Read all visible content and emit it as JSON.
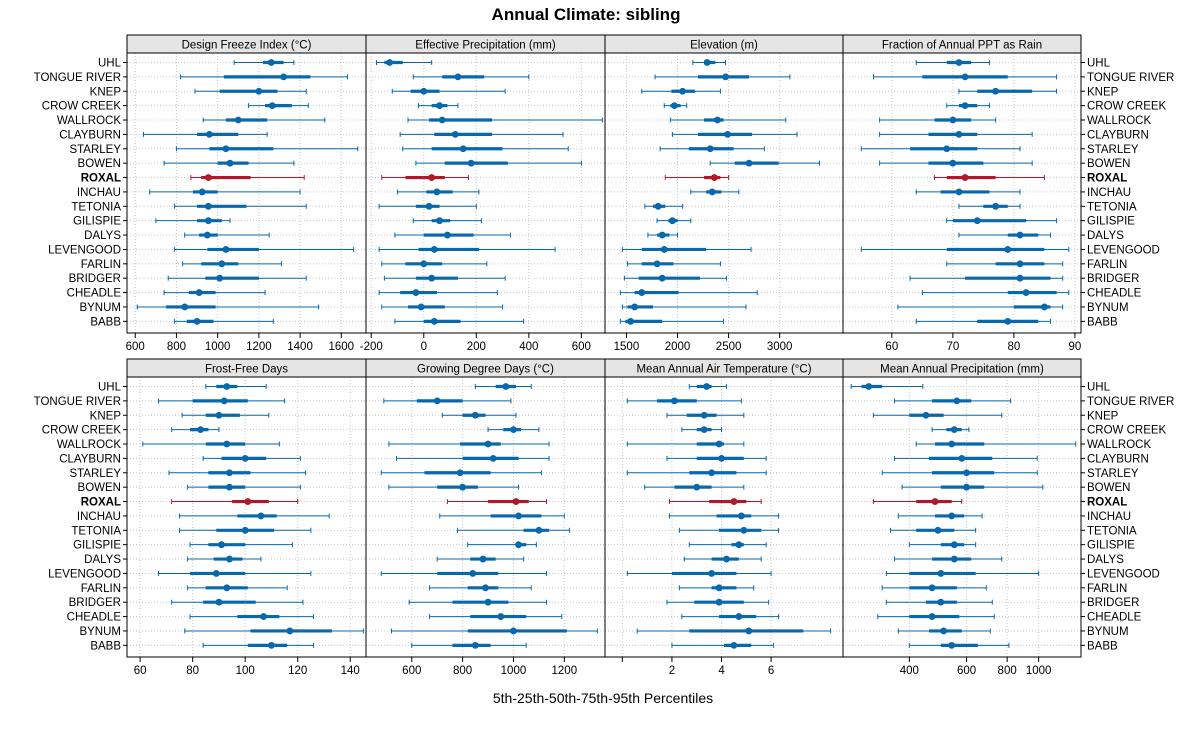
{
  "title": "Annual Climate: sibling",
  "xlabel": "5th-25th-50th-75th-95th Percentiles",
  "highlight_site": "ROXAL",
  "colors": {
    "normal": "#0868ac",
    "highlight": "#b2182b",
    "strip": "#e5e5e5",
    "grid": "#c8c8c8"
  },
  "sites": [
    "UHL",
    "TONGUE RIVER",
    "KNEP",
    "CROW CREEK",
    "WALLROCK",
    "CLAYBURN",
    "STARLEY",
    "BOWEN",
    "ROXAL",
    "INCHAU",
    "TETONIA",
    "GILISPIE",
    "DALYS",
    "LEVENGOOD",
    "FARLIN",
    "BRIDGER",
    "CHEADLE",
    "BYNUM",
    "BABB"
  ],
  "chart_data": [
    {
      "type": "percentile_dotplot",
      "title": "Design Freeze Index (°C)",
      "scale": "linear",
      "xlim": [
        560,
        1720
      ],
      "ticks": [
        600,
        800,
        1000,
        1200,
        1400,
        1600
      ],
      "tick_labels": [
        "600",
        "800",
        "1000",
        "1200",
        "1400",
        "1600"
      ],
      "percentiles": [
        [
          1080,
          1220,
          1260,
          1320,
          1370
        ],
        [
          820,
          1030,
          1320,
          1450,
          1630
        ],
        [
          890,
          1010,
          1200,
          1290,
          1430
        ],
        [
          1150,
          1230,
          1265,
          1360,
          1440
        ],
        [
          930,
          1040,
          1100,
          1240,
          1520
        ],
        [
          640,
          900,
          960,
          1100,
          1240
        ],
        [
          800,
          960,
          1040,
          1270,
          1680
        ],
        [
          740,
          1000,
          1060,
          1150,
          1370
        ],
        [
          870,
          920,
          955,
          1160,
          1420
        ],
        [
          670,
          880,
          925,
          1000,
          1400
        ],
        [
          790,
          900,
          955,
          1140,
          1430
        ],
        [
          700,
          900,
          955,
          1020,
          1060
        ],
        [
          840,
          910,
          950,
          1000,
          1250
        ],
        [
          790,
          950,
          1040,
          1200,
          1660
        ],
        [
          830,
          920,
          1020,
          1100,
          1310
        ],
        [
          760,
          940,
          1010,
          1200,
          1430
        ],
        [
          740,
          860,
          910,
          990,
          1230
        ],
        [
          610,
          750,
          840,
          990,
          1490
        ],
        [
          790,
          850,
          900,
          980,
          1270
        ]
      ]
    },
    {
      "type": "percentile_dotplot",
      "title": "Effective Precipitation (mm)",
      "scale": "linear",
      "xlim": [
        -220,
        690
      ],
      "ticks": [
        -200,
        0,
        200,
        400,
        600
      ],
      "tick_labels": [
        "-200",
        "0",
        "200",
        "400",
        "600"
      ],
      "percentiles": [
        [
          -180,
          -150,
          -130,
          -80,
          30
        ],
        [
          -40,
          70,
          130,
          230,
          400
        ],
        [
          -120,
          -50,
          0,
          60,
          310
        ],
        [
          -20,
          30,
          60,
          90,
          130
        ],
        [
          -60,
          20,
          70,
          260,
          680
        ],
        [
          -90,
          40,
          120,
          260,
          530
        ],
        [
          -80,
          30,
          150,
          300,
          550
        ],
        [
          -30,
          80,
          180,
          320,
          600
        ],
        [
          -160,
          -70,
          30,
          80,
          170
        ],
        [
          -100,
          10,
          50,
          110,
          210
        ],
        [
          -170,
          -30,
          20,
          60,
          200
        ],
        [
          -40,
          30,
          60,
          100,
          220
        ],
        [
          -110,
          0,
          90,
          190,
          330
        ],
        [
          -170,
          -20,
          40,
          210,
          500
        ],
        [
          -160,
          -70,
          0,
          70,
          240
        ],
        [
          -150,
          -30,
          30,
          130,
          310
        ],
        [
          -170,
          -90,
          -30,
          50,
          280
        ],
        [
          -160,
          -60,
          -10,
          80,
          300
        ],
        [
          -110,
          0,
          40,
          140,
          380
        ]
      ]
    },
    {
      "type": "percentile_dotplot",
      "title": "Elevation (m)",
      "scale": "linear",
      "xlim": [
        1290,
        3620
      ],
      "ticks": [
        1500,
        2000,
        2500,
        3000
      ],
      "tick_labels": [
        "1500",
        "2000",
        "2500",
        "3000"
      ],
      "percentiles": [
        [
          2150,
          2260,
          2290,
          2370,
          2470
        ],
        [
          1780,
          2200,
          2470,
          2700,
          3100
        ],
        [
          1650,
          1940,
          2050,
          2170,
          2420
        ],
        [
          1870,
          1930,
          1970,
          2030,
          2090
        ],
        [
          1930,
          2260,
          2390,
          2450,
          3060
        ],
        [
          1950,
          2200,
          2490,
          2730,
          3170
        ],
        [
          1830,
          2110,
          2320,
          2550,
          2850
        ],
        [
          2320,
          2560,
          2700,
          2990,
          3390
        ],
        [
          1880,
          2260,
          2360,
          2420,
          2500
        ],
        [
          2130,
          2280,
          2340,
          2430,
          2600
        ],
        [
          1680,
          1760,
          1810,
          1880,
          2050
        ],
        [
          1800,
          1910,
          1950,
          2000,
          2130
        ],
        [
          1710,
          1800,
          1850,
          1920,
          2000
        ],
        [
          1460,
          1650,
          1870,
          2280,
          2720
        ],
        [
          1510,
          1650,
          1800,
          1960,
          2420
        ],
        [
          1480,
          1620,
          1850,
          2220,
          2480
        ],
        [
          1440,
          1580,
          1650,
          2010,
          2780
        ],
        [
          1460,
          1510,
          1580,
          1760,
          2670
        ],
        [
          1440,
          1490,
          1540,
          1850,
          2450
        ]
      ]
    },
    {
      "type": "percentile_dotplot",
      "title": "Fraction of Annual PPT as Rain",
      "scale": "linear",
      "xlim": [
        52,
        91
      ],
      "ticks": [
        60,
        70,
        80,
        90
      ],
      "tick_labels": [
        "60",
        "70",
        "80",
        "90"
      ],
      "percentiles": [
        [
          64,
          69,
          71,
          73,
          76
        ],
        [
          57,
          65,
          72,
          79,
          87
        ],
        [
          71,
          74,
          77,
          83,
          87
        ],
        [
          69,
          71,
          72,
          74,
          76
        ],
        [
          58,
          67,
          70,
          73,
          77
        ],
        [
          58,
          66,
          71,
          74,
          83
        ],
        [
          55,
          63,
          69,
          74,
          81
        ],
        [
          58,
          66,
          70,
          75,
          83
        ],
        [
          67,
          69,
          72,
          77,
          85
        ],
        [
          64,
          68,
          71,
          76,
          81
        ],
        [
          71,
          75,
          77,
          79,
          81
        ],
        [
          69,
          70,
          74,
          82,
          87
        ],
        [
          71,
          79,
          81,
          84,
          86
        ],
        [
          55,
          69,
          79,
          85,
          89
        ],
        [
          69,
          77,
          81,
          85,
          88
        ],
        [
          63,
          72,
          81,
          86,
          88
        ],
        [
          65,
          79,
          82,
          87,
          89
        ],
        [
          61,
          80,
          85,
          86,
          88
        ],
        [
          64,
          74,
          79,
          84,
          86
        ]
      ]
    },
    {
      "type": "percentile_dotplot",
      "title": "Frost-Free Days",
      "scale": "linear",
      "xlim": [
        55,
        146
      ],
      "ticks": [
        60,
        80,
        100,
        120,
        140
      ],
      "tick_labels": [
        "60",
        "80",
        "100",
        "120",
        "140"
      ],
      "percentiles": [
        [
          85,
          89,
          93,
          97,
          108
        ],
        [
          67,
          80,
          92,
          101,
          115
        ],
        [
          76,
          85,
          90,
          98,
          109
        ],
        [
          72,
          79,
          83,
          86,
          90
        ],
        [
          61,
          85,
          93,
          100,
          113
        ],
        [
          84,
          91,
          100,
          108,
          121
        ],
        [
          71,
          86,
          94,
          102,
          123
        ],
        [
          78,
          86,
          94,
          100,
          121
        ],
        [
          72,
          95,
          101,
          109,
          120
        ],
        [
          75,
          97,
          106,
          112,
          132
        ],
        [
          75,
          89,
          100,
          111,
          125
        ],
        [
          79,
          86,
          91,
          100,
          118
        ],
        [
          78,
          88,
          94,
          99,
          106
        ],
        [
          67,
          79,
          89,
          100,
          125
        ],
        [
          78,
          85,
          93,
          101,
          116
        ],
        [
          72,
          84,
          90,
          104,
          122
        ],
        [
          79,
          97,
          107,
          113,
          126
        ],
        [
          77,
          102,
          117,
          133,
          145
        ],
        [
          84,
          101,
          110,
          116,
          126
        ]
      ]
    },
    {
      "type": "percentile_dotplot",
      "title": "Growing Degree Days (°C)",
      "scale": "linear",
      "xlim": [
        420,
        1360
      ],
      "ticks": [
        600,
        800,
        1000,
        1200
      ],
      "tick_labels": [
        "600",
        "800",
        "1000",
        "1200"
      ],
      "percentiles": [
        [
          850,
          930,
          970,
          1010,
          1070
        ],
        [
          490,
          620,
          700,
          800,
          990
        ],
        [
          720,
          800,
          850,
          890,
          1010
        ],
        [
          900,
          960,
          1000,
          1030,
          1100
        ],
        [
          510,
          790,
          900,
          950,
          1140
        ],
        [
          540,
          800,
          920,
          1020,
          1140
        ],
        [
          480,
          650,
          790,
          910,
          1110
        ],
        [
          510,
          700,
          800,
          860,
          1020
        ],
        [
          740,
          900,
          1010,
          1060,
          1130
        ],
        [
          710,
          910,
          1020,
          1110,
          1200
        ],
        [
          780,
          1040,
          1100,
          1140,
          1220
        ],
        [
          820,
          1010,
          1020,
          1050,
          1090
        ],
        [
          700,
          830,
          880,
          930,
          1040
        ],
        [
          480,
          700,
          840,
          940,
          1130
        ],
        [
          670,
          820,
          890,
          940,
          1070
        ],
        [
          590,
          760,
          900,
          980,
          1130
        ],
        [
          670,
          830,
          950,
          1050,
          1190
        ],
        [
          520,
          820,
          1000,
          1210,
          1330
        ],
        [
          600,
          760,
          850,
          910,
          1050
        ]
      ]
    },
    {
      "type": "percentile_dotplot",
      "title": "Mean Annual Air Temperature (°C)",
      "scale": "linear",
      "xlim": [
        -0.7,
        8.9
      ],
      "ticks": [
        0,
        2,
        4,
        6
      ],
      "tick_labels": [
        "",
        "2",
        "4",
        "6"
      ],
      "percentiles": [
        [
          2.7,
          3.0,
          3.4,
          3.6,
          4.2
        ],
        [
          0.2,
          1.4,
          2.1,
          3.0,
          4.8
        ],
        [
          1.8,
          2.6,
          3.3,
          3.8,
          4.9
        ],
        [
          2.4,
          3.0,
          3.3,
          3.6,
          4.0
        ],
        [
          0.2,
          3.0,
          3.9,
          4.1,
          4.9
        ],
        [
          1.8,
          3.0,
          4.0,
          4.9,
          5.8
        ],
        [
          0.2,
          2.7,
          3.6,
          4.6,
          5.8
        ],
        [
          0.9,
          2.1,
          3.0,
          3.6,
          4.9
        ],
        [
          1.9,
          3.5,
          4.5,
          5.0,
          5.6
        ],
        [
          1.9,
          3.8,
          4.8,
          5.2,
          6.3
        ],
        [
          2.3,
          3.9,
          4.9,
          5.6,
          6.3
        ],
        [
          2.7,
          4.4,
          4.7,
          4.9,
          5.8
        ],
        [
          2.5,
          3.6,
          4.2,
          4.7,
          5.6
        ],
        [
          0.2,
          2.0,
          3.6,
          4.6,
          6.0
        ],
        [
          2.3,
          3.6,
          3.9,
          4.6,
          5.3
        ],
        [
          1.8,
          2.9,
          3.9,
          4.9,
          5.9
        ],
        [
          2.4,
          3.9,
          4.7,
          5.4,
          6.3
        ],
        [
          0.6,
          2.7,
          5.1,
          7.3,
          8.4
        ],
        [
          2.0,
          4.1,
          4.5,
          5.2,
          6.1
        ]
      ]
    },
    {
      "type": "percentile_dotplot",
      "title": "Mean Annual Precipitation (mm)",
      "scale": "log",
      "xlim": [
        250,
        1350
      ],
      "ticks": [
        400,
        600,
        800,
        1000
      ],
      "tick_labels": [
        "400",
        "600",
        "800",
        "1000"
      ],
      "percentiles": [
        [
          265,
          285,
          300,
          330,
          440
        ],
        [
          360,
          470,
          560,
          620,
          820
        ],
        [
          310,
          400,
          450,
          510,
          770
        ],
        [
          470,
          520,
          550,
          580,
          610
        ],
        [
          420,
          480,
          540,
          680,
          1300
        ],
        [
          360,
          460,
          580,
          720,
          990
        ],
        [
          330,
          470,
          600,
          730,
          990
        ],
        [
          380,
          500,
          600,
          680,
          1030
        ],
        [
          310,
          420,
          480,
          540,
          580
        ],
        [
          370,
          480,
          540,
          590,
          670
        ],
        [
          350,
          420,
          490,
          550,
          640
        ],
        [
          400,
          500,
          550,
          590,
          640
        ],
        [
          360,
          470,
          550,
          620,
          770
        ],
        [
          340,
          400,
          500,
          640,
          1000
        ],
        [
          330,
          400,
          470,
          560,
          690
        ],
        [
          340,
          450,
          500,
          560,
          720
        ],
        [
          320,
          400,
          470,
          570,
          730
        ],
        [
          370,
          460,
          510,
          580,
          710
        ],
        [
          400,
          500,
          540,
          650,
          810
        ]
      ]
    }
  ]
}
